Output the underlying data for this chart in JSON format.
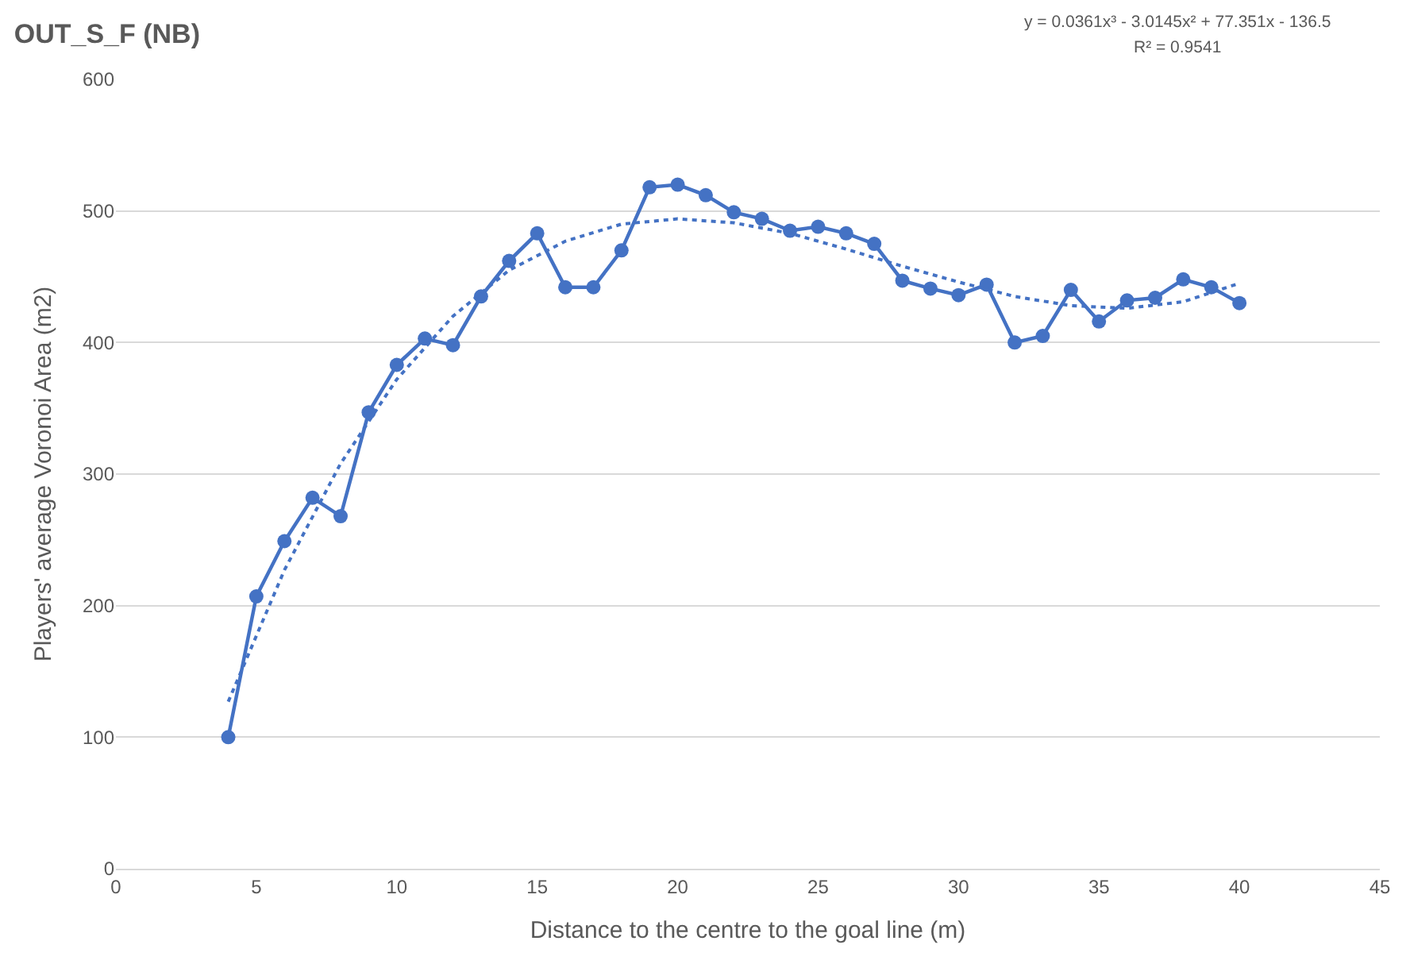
{
  "chart_data": {
    "type": "line",
    "title": "OUT_S_F (NB)",
    "xlabel": "Distance to the centre to the goal line (m)",
    "ylabel": "Players' average Voronoi Area (m2)",
    "annotations": [
      "y = 0.0361x³ - 3.0145x² + 77.351x - 136.5",
      "R² = 0.9541"
    ],
    "series": [
      {
        "color": "#4472c4",
        "marker": "circle",
        "line_style": "solid",
        "x": [
          4,
          5,
          6,
          7,
          8,
          9,
          10,
          11,
          12,
          13,
          14,
          15,
          16,
          17,
          18,
          19,
          20,
          21,
          22,
          23,
          24,
          25,
          26,
          27,
          28,
          29,
          30,
          31,
          32,
          33,
          34,
          35,
          36,
          37,
          38,
          39,
          40
        ],
        "values": [
          100,
          207,
          249,
          282,
          268,
          347,
          383,
          403,
          398,
          435,
          462,
          483,
          442,
          442,
          470,
          518,
          520,
          512,
          499,
          494,
          485,
          488,
          483,
          475,
          447,
          441,
          436,
          444,
          400,
          405,
          440,
          416,
          432,
          434,
          448,
          442,
          430
        ]
      },
      {
        "type": "line",
        "color": "#4472c4",
        "marker": "none",
        "line_style": "dotted",
        "x": [
          4,
          6,
          8,
          10,
          12,
          14,
          16,
          18,
          20,
          22,
          24,
          26,
          28,
          30,
          32,
          34,
          36,
          38,
          40
        ],
        "values": [
          127,
          227,
          308,
          372,
          420,
          455,
          477,
          490,
          494,
          491,
          483,
          471,
          458,
          446,
          435,
          428,
          426,
          431,
          445
        ]
      }
    ],
    "xlim": [
      0,
      45
    ],
    "xticks": [
      0,
      5,
      10,
      15,
      20,
      25,
      30,
      35,
      40,
      45
    ],
    "ylim": [
      0,
      600
    ],
    "yticks": [
      0,
      100,
      200,
      300,
      400,
      500,
      600
    ],
    "grid": "y"
  }
}
